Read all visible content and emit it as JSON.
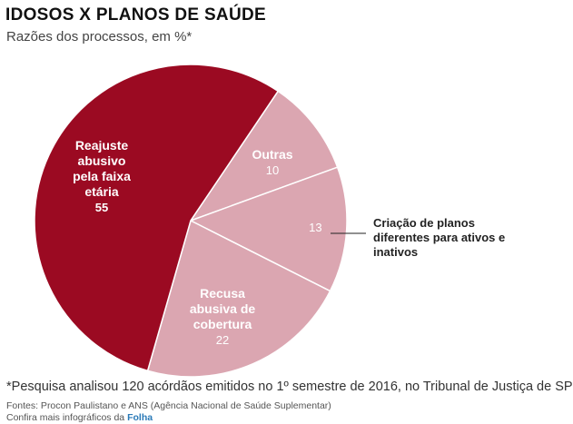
{
  "header": {
    "title": "IDOSOS X PLANOS DE SAÚDE",
    "subtitle": "Razões dos processos, em %*"
  },
  "chart_data": {
    "type": "pie",
    "title": "IDOSOS X PLANOS DE SAÚDE",
    "subtitle": "Razões dos processos, em %*",
    "unit": "%",
    "slices": [
      {
        "label": [
          "Reajuste",
          "abusivo",
          "pela faixa",
          "etária"
        ],
        "value": 55,
        "color": "#9b0a22",
        "label_color": "#ffffff"
      },
      {
        "label": [
          "Recusa",
          "abusiva de",
          "cobertura"
        ],
        "value": 22,
        "color": "#dba6b1",
        "label_color": "#ffffff"
      },
      {
        "label": [
          "Criação de planos",
          "diferentes para ativos e",
          "inativos"
        ],
        "value": 13,
        "color": "#dba6b1",
        "label_color": "#ffffff",
        "callout": true
      },
      {
        "label": [
          "Outras"
        ],
        "value": 10,
        "color": "#dba6b1",
        "label_color": "#ffffff"
      }
    ],
    "colors": {
      "primary": "#9b0a22",
      "secondary": "#dba6b1",
      "separator": "#ffffff"
    }
  },
  "footer": {
    "note": "*Pesquisa analisou 120 acórdãos emitidos no 1º semestre de 2016, no Tribunal de Justiça de SP",
    "sources": "Fontes: Procon Paulistano e ANS (Agência Nacional de Saúde Suplementar)",
    "more_prefix": "Confira mais infográficos da",
    "more_brand": "Folha"
  }
}
